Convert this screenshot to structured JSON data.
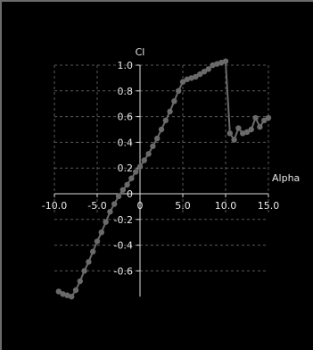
{
  "chart_data": {
    "type": "line",
    "title": "",
    "xlabel": "Alpha",
    "ylabel": "Cl",
    "xlim": [
      -10.0,
      15.0
    ],
    "ylim": [
      -0.8,
      1.0
    ],
    "grid": true,
    "x_ticks": [
      -10.0,
      -5.0,
      0,
      5.0,
      10.0,
      15.0
    ],
    "x_tick_labels": [
      "-10.0",
      "-5.0",
      "0",
      "5.0",
      "10.0",
      "15.0"
    ],
    "y_ticks": [
      1.0,
      0.8,
      0.6,
      0.4,
      0.2,
      0,
      -0.2,
      -0.4,
      -0.6
    ],
    "y_tick_labels": [
      "1.0",
      "0.8",
      "0.6",
      "0.4",
      "0.2",
      "0",
      "-0.2",
      "-0.4",
      "-0.6"
    ],
    "series": [
      {
        "color": "#6a6a6a",
        "x": [
          -9.5,
          -9.0,
          -8.5,
          -8.0,
          -7.5,
          -7.0,
          -6.5,
          -6.0,
          -5.5,
          -5.0,
          -4.5,
          -4.0,
          -3.5,
          -3.0,
          -2.5,
          -2.0,
          -1.5,
          -1.0,
          -0.5,
          0.0,
          0.5,
          1.0,
          1.5,
          2.0,
          2.5,
          3.0,
          3.5,
          4.0,
          4.5,
          5.0,
          5.5,
          6.0,
          6.5,
          7.0,
          7.5,
          8.0,
          8.5,
          9.0,
          9.5,
          10.0,
          10.5,
          11.0,
          11.5,
          12.0,
          12.5,
          13.0,
          13.5,
          14.0,
          14.5,
          15.0
        ],
        "y": [
          -0.76,
          -0.78,
          -0.79,
          -0.8,
          -0.75,
          -0.68,
          -0.6,
          -0.53,
          -0.45,
          -0.37,
          -0.3,
          -0.22,
          -0.14,
          -0.08,
          -0.02,
          0.03,
          0.07,
          0.12,
          0.17,
          0.21,
          0.26,
          0.31,
          0.37,
          0.43,
          0.5,
          0.57,
          0.64,
          0.72,
          0.8,
          0.87,
          0.89,
          0.9,
          0.91,
          0.93,
          0.95,
          0.97,
          1.0,
          1.01,
          1.02,
          1.03,
          0.47,
          0.42,
          0.51,
          0.47,
          0.48,
          0.5,
          0.59,
          0.52,
          0.57,
          0.59
        ]
      }
    ]
  }
}
